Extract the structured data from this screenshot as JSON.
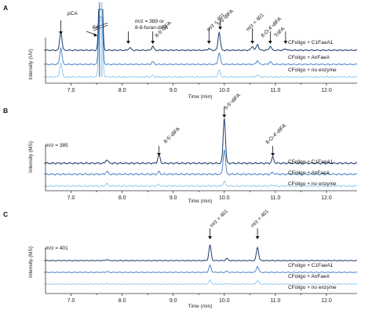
{
  "figure": {
    "panels": [
      {
        "letter": "A",
        "ylabel": "Intensity (UV)",
        "xlabel": "Time (min)",
        "extra_label": "",
        "traces": [
          "CFoligo + C1FaeA1",
          "CFoligo + AnFaeA",
          "CFoligo + no enzyme"
        ],
        "annotations": [
          {
            "text": "pCA"
          },
          {
            "text": "FA"
          },
          {
            "text": "m/z = 389 or"
          },
          {
            "text": "8-8-furan-diFA"
          },
          {
            "text": "8-5'-diFA"
          },
          {
            "text": "m/z = 401"
          },
          {
            "text": "5-5'-diFA"
          },
          {
            "text": "m/z = 401"
          },
          {
            "text": "8-O-4'-diFA"
          },
          {
            "text": "TriFA"
          }
        ]
      },
      {
        "letter": "B",
        "ylabel": "Intensity (MS)",
        "xlabel": "Time (min)",
        "extra_label": "m/z = 385",
        "traces": [
          "CFoligo + C1FaeA1",
          "CFoligo + AnFaeA",
          "CFoligo + no enzyme"
        ],
        "annotations": [
          {
            "text": "8-5'-diFA"
          },
          {
            "text": "5-5'-diFA"
          },
          {
            "text": "8-O-4'-diFA"
          }
        ]
      },
      {
        "letter": "C",
        "ylabel": "Intensity (MS)",
        "xlabel": "Time (min)",
        "extra_label": "m/z = 401",
        "traces": [
          "CFoligo + C1FaeA1",
          "CFoligo + AnFaeA",
          "CFoligo + no enzyme"
        ],
        "annotations": [
          {
            "text": "m/z = 401"
          },
          {
            "text": "m/z = 401"
          }
        ]
      }
    ],
    "colors": {
      "c1faea1": "#1b3a6b",
      "anfaea": "#3a79c3",
      "noenzyme": "#8cc4ec",
      "axis": "#333333"
    }
  },
  "chart_data": [
    {
      "type": "line",
      "panel": "A",
      "xlabel": "Time (min)",
      "ylabel": "Intensity (UV)",
      "xlim": [
        6.5,
        12.6
      ],
      "xticks": [
        "7.0",
        "7.5",
        "8.0",
        "8.5",
        "9.0",
        "9.5",
        "10.0",
        "10.5",
        "11.0",
        "11.5",
        "12.0"
      ],
      "series": [
        {
          "name": "CFoligo + C1FaeA1",
          "peaks": [
            [
              6.8,
              0.55
            ],
            [
              7.58,
              5.0
            ],
            [
              8.15,
              0.08
            ],
            [
              8.6,
              0.12
            ],
            [
              9.7,
              0.05
            ],
            [
              9.9,
              0.55
            ],
            [
              10.55,
              0.12
            ],
            [
              10.65,
              0.18
            ],
            [
              10.9,
              0.12
            ],
            [
              11.2,
              0.04
            ]
          ]
        },
        {
          "name": "CFoligo + AnFaeA",
          "peaks": [
            [
              6.8,
              0.5
            ],
            [
              7.58,
              5.0
            ],
            [
              8.6,
              0.08
            ],
            [
              9.9,
              0.35
            ],
            [
              10.65,
              0.12
            ],
            [
              10.9,
              0.08
            ]
          ]
        },
        {
          "name": "CFoligo + no enzyme",
          "peaks": [
            [
              6.8,
              0.42
            ],
            [
              7.58,
              5.0
            ],
            [
              8.6,
              0.04
            ],
            [
              9.9,
              0.2
            ],
            [
              10.65,
              0.06
            ]
          ]
        }
      ],
      "peak_markers": [
        {
          "label": "pCA",
          "x": 6.8
        },
        {
          "label": "FA",
          "x": 7.58
        },
        {
          "label": "m/z = 389 or 8-8-furan-diFA",
          "x": 8.12
        },
        {
          "label": "8-5'-diFA",
          "x": 8.6
        },
        {
          "label": "m/z = 401",
          "x": 9.7
        },
        {
          "label": "5-5'-diFA",
          "x": 9.92
        },
        {
          "label": "m/z = 401",
          "x": 10.55
        },
        {
          "label": "8-O-4'-diFA",
          "x": 10.9
        },
        {
          "label": "TriFA",
          "x": 11.2
        }
      ]
    },
    {
      "type": "line",
      "panel": "B",
      "xlabel": "Time (min)",
      "ylabel": "Intensity (MS)",
      "xlim": [
        6.5,
        12.6
      ],
      "xticks": [
        "7.0",
        "8.0",
        "9.0",
        "10.0",
        "11.0",
        "12.0"
      ],
      "series": [
        {
          "name": "CFoligo + C1FaeA1",
          "peaks": [
            [
              7.7,
              0.08
            ],
            [
              8.72,
              0.18
            ],
            [
              10.0,
              1.0
            ],
            [
              10.95,
              0.13
            ]
          ]
        },
        {
          "name": "CFoligo + AnFaeA",
          "peaks": [
            [
              7.7,
              0.06
            ],
            [
              8.72,
              0.05
            ],
            [
              10.0,
              0.55
            ],
            [
              10.95,
              0.04
            ]
          ]
        },
        {
          "name": "CFoligo + no enzyme",
          "peaks": [
            [
              7.7,
              0.05
            ],
            [
              8.72,
              0.03
            ],
            [
              10.0,
              0.1
            ],
            [
              10.95,
              0.02
            ]
          ]
        }
      ],
      "peak_markers": [
        {
          "label": "8-5'-diFA",
          "x": 8.72
        },
        {
          "label": "5-5'-diFA",
          "x": 10.0
        },
        {
          "label": "8-O-4'-diFA",
          "x": 10.95
        }
      ]
    },
    {
      "type": "line",
      "panel": "C",
      "xlabel": "Time (min)",
      "ylabel": "Intensity (MS)",
      "xlim": [
        6.5,
        12.6
      ],
      "xticks": [
        "7.0",
        "8.0",
        "9.0",
        "10.0",
        "11.0",
        "12.0"
      ],
      "series": [
        {
          "name": "CFoligo + C1FaeA1",
          "peaks": [
            [
              7.7,
              0.05
            ],
            [
              9.72,
              0.75
            ],
            [
              10.05,
              0.1
            ],
            [
              10.65,
              0.65
            ]
          ]
        },
        {
          "name": "CFoligo + AnFaeA",
          "peaks": [
            [
              7.7,
              0.04
            ],
            [
              9.72,
              0.35
            ],
            [
              10.05,
              0.05
            ],
            [
              10.65,
              0.3
            ]
          ]
        },
        {
          "name": "CFoligo + no enzyme",
          "peaks": [
            [
              7.7,
              0.03
            ],
            [
              9.72,
              0.2
            ],
            [
              10.05,
              0.03
            ],
            [
              10.65,
              0.18
            ]
          ]
        }
      ],
      "peak_markers": [
        {
          "label": "m/z = 401",
          "x": 9.72
        },
        {
          "label": "m/z = 401",
          "x": 10.65
        }
      ]
    }
  ]
}
